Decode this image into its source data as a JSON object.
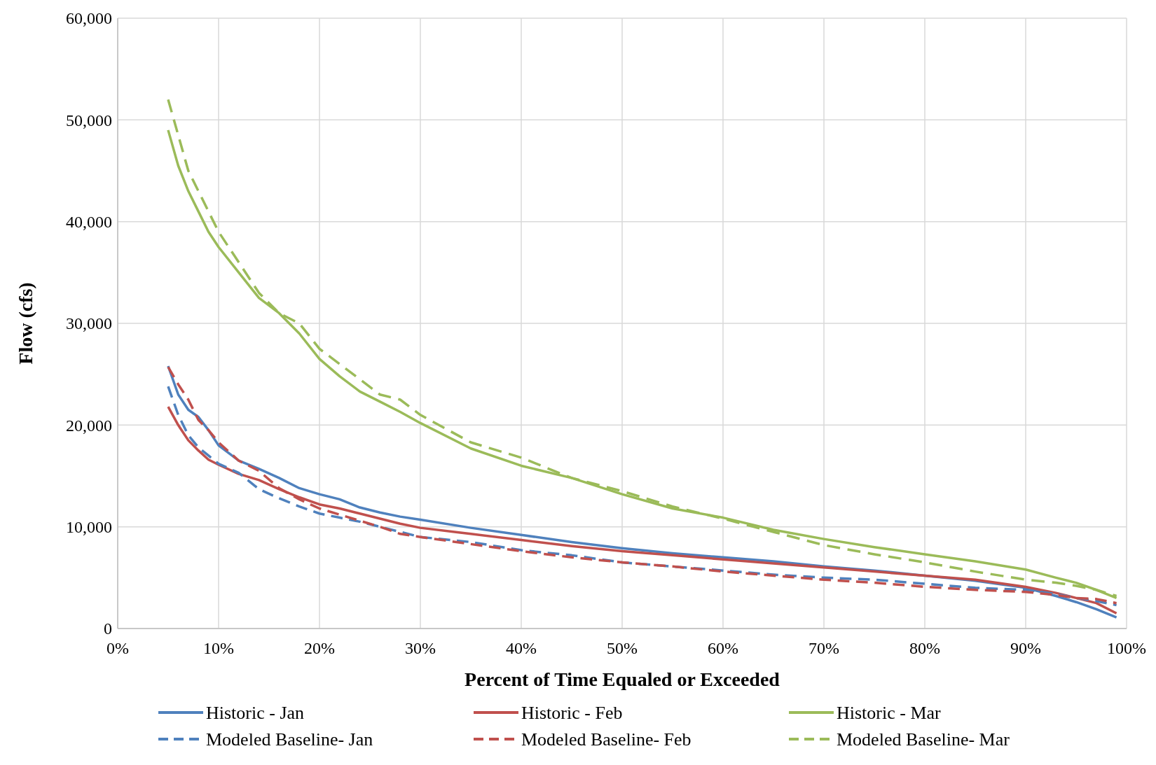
{
  "chart_data": {
    "type": "line",
    "xlabel": "Percent of Time Equaled or Exceeded",
    "ylabel": "Flow (cfs)",
    "x": [
      5,
      6,
      7,
      8,
      9,
      10,
      12,
      14,
      16,
      18,
      20,
      22,
      24,
      26,
      28,
      30,
      35,
      40,
      45,
      50,
      55,
      60,
      65,
      70,
      75,
      80,
      85,
      90,
      93,
      95,
      97,
      99
    ],
    "series": [
      {
        "name": "Historic - Jan",
        "color": "#4f81bd",
        "line_style": "solid",
        "values": [
          25800,
          23000,
          21500,
          20800,
          19500,
          18000,
          16500,
          15700,
          14800,
          13800,
          13200,
          12700,
          11900,
          11400,
          11000,
          10700,
          9900,
          9200,
          8500,
          7900,
          7400,
          7000,
          6600,
          6100,
          5700,
          5200,
          4700,
          4000,
          3200,
          2600,
          1900,
          1100
        ]
      },
      {
        "name": "Historic - Feb",
        "color": "#c0504d",
        "line_style": "solid",
        "values": [
          21800,
          20000,
          18500,
          17500,
          16600,
          16100,
          15200,
          14600,
          13700,
          12900,
          12200,
          11800,
          11300,
          10800,
          10300,
          9900,
          9300,
          8700,
          8100,
          7600,
          7200,
          6800,
          6400,
          6000,
          5600,
          5200,
          4800,
          4100,
          3500,
          3000,
          2500,
          1500
        ]
      },
      {
        "name": "Historic - Mar",
        "color": "#9bbb59",
        "line_style": "solid",
        "values": [
          49000,
          45500,
          43000,
          41000,
          39000,
          37500,
          35000,
          32500,
          31000,
          29000,
          26500,
          24800,
          23300,
          22300,
          21300,
          20200,
          17700,
          16000,
          14800,
          13200,
          11800,
          10900,
          9700,
          8800,
          8000,
          7300,
          6600,
          5800,
          5000,
          4500,
          3800,
          3000
        ]
      },
      {
        "name": "Modeled Baseline- Jan",
        "color": "#4f81bd",
        "line_style": "dashed",
        "values": [
          23800,
          21000,
          19000,
          17800,
          17000,
          16200,
          15300,
          13700,
          12800,
          12000,
          11300,
          10900,
          10500,
          10000,
          9500,
          9000,
          8500,
          7700,
          7200,
          6500,
          6100,
          5700,
          5300,
          5000,
          4800,
          4400,
          4000,
          3800,
          3400,
          3000,
          2700,
          2300
        ]
      },
      {
        "name": "Modeled Baseline- Feb",
        "color": "#c0504d",
        "line_style": "dashed",
        "values": [
          25700,
          24000,
          22500,
          20500,
          19500,
          18300,
          16500,
          15500,
          13800,
          12700,
          11800,
          11200,
          10600,
          10000,
          9300,
          9000,
          8300,
          7600,
          7000,
          6500,
          6100,
          5600,
          5200,
          4800,
          4500,
          4100,
          3800,
          3600,
          3300,
          3000,
          2900,
          2500
        ]
      },
      {
        "name": "Modeled Baseline- Mar",
        "color": "#9bbb59",
        "line_style": "dashed",
        "values": [
          52000,
          48500,
          45000,
          43000,
          41000,
          39000,
          36000,
          33000,
          31000,
          30000,
          27500,
          26000,
          24500,
          23000,
          22500,
          21000,
          18300,
          16800,
          14800,
          13500,
          12000,
          10800,
          9500,
          8200,
          7300,
          6500,
          5600,
          4800,
          4500,
          4200,
          3800,
          3200
        ]
      }
    ],
    "xlim": [
      0,
      100
    ],
    "xticks": [
      {
        "value": 0,
        "label": "0%"
      },
      {
        "value": 10,
        "label": "10%"
      },
      {
        "value": 20,
        "label": "20%"
      },
      {
        "value": 30,
        "label": "30%"
      },
      {
        "value": 40,
        "label": "40%"
      },
      {
        "value": 50,
        "label": "50%"
      },
      {
        "value": 60,
        "label": "60%"
      },
      {
        "value": 70,
        "label": "70%"
      },
      {
        "value": 80,
        "label": "80%"
      },
      {
        "value": 90,
        "label": "90%"
      },
      {
        "value": 100,
        "label": "100%"
      }
    ],
    "ylim": [
      0,
      60000
    ],
    "yticks": [
      {
        "value": 0,
        "label": "0"
      },
      {
        "value": 10000,
        "label": "10,000"
      },
      {
        "value": 20000,
        "label": "20,000"
      },
      {
        "value": 30000,
        "label": "30,000"
      },
      {
        "value": 40000,
        "label": "40,000"
      },
      {
        "value": 50000,
        "label": "50,000"
      },
      {
        "value": 60000,
        "label": "60,000"
      }
    ],
    "grid": true,
    "legend": "bottom"
  }
}
